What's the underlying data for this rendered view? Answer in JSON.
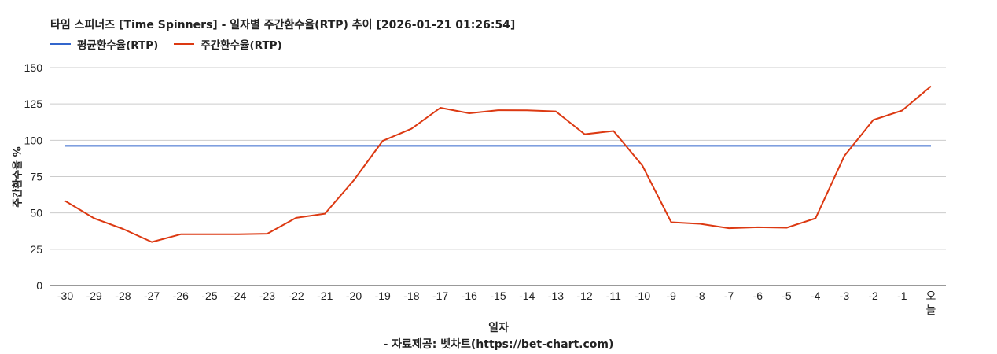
{
  "chart_data": {
    "type": "line",
    "title": "타임 스피너즈 [Time Spinners] - 일자별 주간환수율(RTP) 추이 [2026-01-21 01:26:54]",
    "xlabel": "일자",
    "ylabel": "주간환수율 %",
    "credit": "- 자료제공: 벳차트(https://bet-chart.com)",
    "ylim": [
      0,
      150
    ],
    "yticks": [
      0,
      25,
      50,
      75,
      100,
      125,
      150
    ],
    "grid": true,
    "legend_position": "top-left",
    "categories": [
      "-30",
      "-29",
      "-28",
      "-27",
      "-26",
      "-25",
      "-24",
      "-23",
      "-22",
      "-21",
      "-20",
      "-19",
      "-18",
      "-17",
      "-16",
      "-15",
      "-14",
      "-13",
      "-12",
      "-11",
      "-10",
      "-9",
      "-8",
      "-7",
      "-6",
      "-5",
      "-4",
      "-3",
      "-2",
      "-1",
      "오늘"
    ],
    "series": [
      {
        "name": "평균환수율(RTP)",
        "color": "#3366cc",
        "values": [
          96.2,
          96.2,
          96.2,
          96.2,
          96.2,
          96.2,
          96.2,
          96.2,
          96.2,
          96.2,
          96.2,
          96.2,
          96.2,
          96.2,
          96.2,
          96.2,
          96.2,
          96.2,
          96.2,
          96.2,
          96.2,
          96.2,
          96.2,
          96.2,
          96.2,
          96.2,
          96.2,
          96.2,
          96.2,
          96.2,
          96.2
        ]
      },
      {
        "name": "주간환수율(RTP)",
        "color": "#dc3912",
        "values": [
          58.2,
          46.3,
          39.0,
          30.0,
          35.3,
          35.3,
          35.3,
          35.7,
          46.6,
          49.5,
          72.5,
          99.6,
          108.0,
          122.4,
          118.6,
          120.7,
          120.6,
          119.9,
          104.2,
          106.4,
          82.6,
          43.6,
          42.5,
          39.5,
          40.1,
          39.8,
          46.3,
          89.3,
          114.0,
          120.5,
          137.2
        ]
      }
    ]
  }
}
